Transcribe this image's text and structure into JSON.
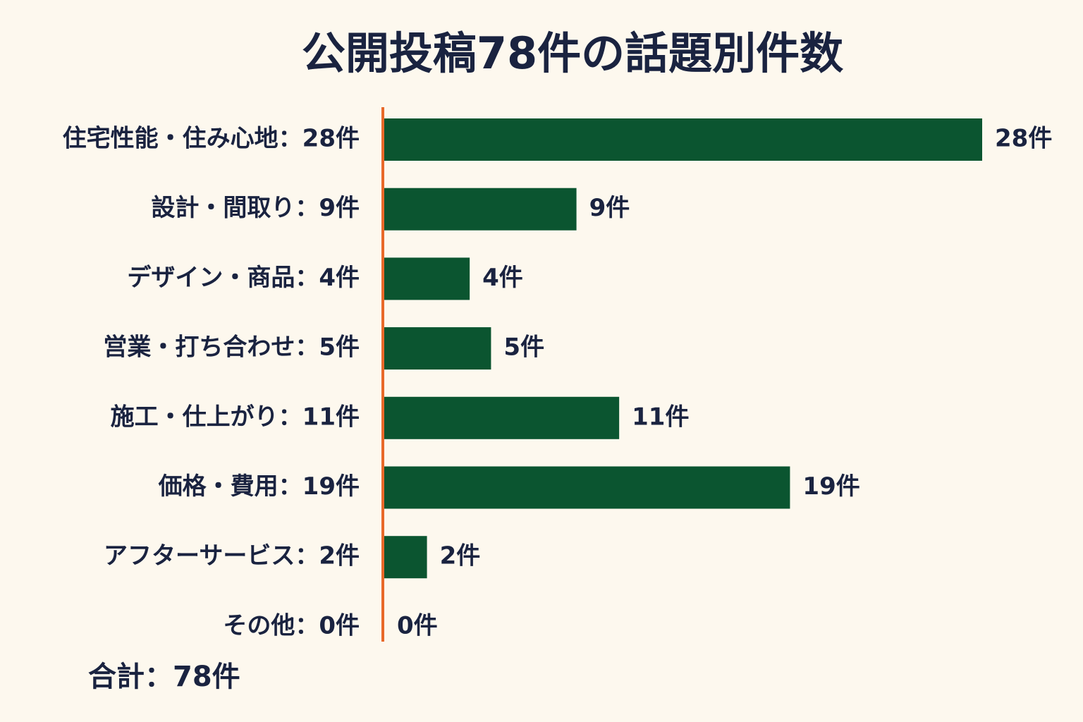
{
  "chart_data": {
    "type": "barh",
    "title": "公開投稿78件の話題別件数",
    "categories": [
      "住宅性能・住み心地：28件",
      "設計・間取り：9件",
      "デザイン・商品：4件",
      "営業・打ち合わせ：5件",
      "施工・仕上がり：11件",
      "価格・費用：19件",
      "アフターサービス：2件",
      "その他：0件"
    ],
    "values": [
      28,
      9,
      4,
      5,
      11,
      19,
      2,
      0
    ],
    "value_labels": [
      "28件",
      "9件",
      "4件",
      "5件",
      "11件",
      "19件",
      "2件",
      "0件"
    ],
    "color": "#0b5530",
    "axis_color": "#e8692a",
    "annotation": "合計：78件"
  }
}
